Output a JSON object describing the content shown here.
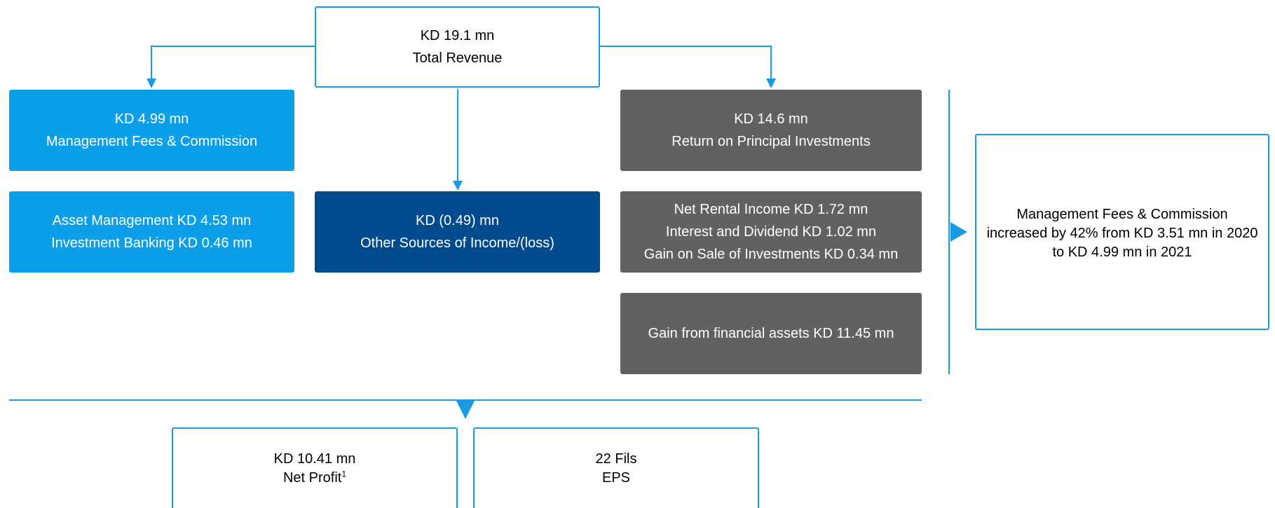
{
  "top": {
    "value": "KD 19.1 mn",
    "label": "Total Revenue"
  },
  "fees": {
    "value": "KD 4.99 mn",
    "label": "Management Fees & Commission"
  },
  "fees_detail": [
    "Asset Management KD 4.53 mn",
    "Investment Banking KD 0.46 mn"
  ],
  "other": {
    "value": "KD (0.49) mn",
    "label": "Other Sources of Income/(loss)"
  },
  "principal": {
    "value": "KD 14.6 mn",
    "label": "Return on Principal Investments"
  },
  "principal_detail": [
    "Net Rental Income KD 1.72 mn",
    "Interest and Dividend KD 1.02 mn",
    "Gain on Sale of Investments KD 0.34 mn"
  ],
  "financial": "Gain from financial assets KD 11.45 mn",
  "note": [
    "Management Fees & Commission",
    "increased by 42% from KD 3.51 mn in 2020",
    "to KD 4.99 mn in 2021"
  ],
  "profit": {
    "value": "KD 10.41 mn",
    "label": "Net Profit",
    "sup": "1"
  },
  "eps": {
    "value": "22 Fils",
    "label": "EPS"
  }
}
